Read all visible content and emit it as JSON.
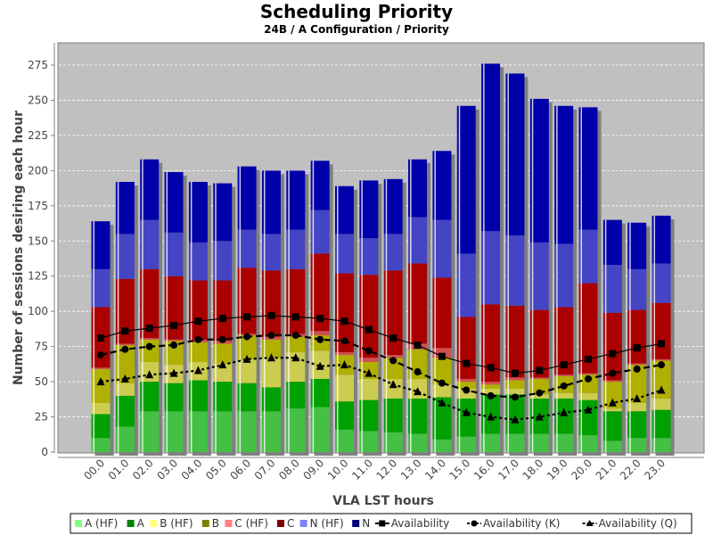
{
  "chart_data": {
    "type": "bar",
    "stacked": true,
    "title": "Scheduling Priority",
    "subtitle": "24B / A Configuration /  Priority",
    "xlabel": "VLA LST hours",
    "ylabel": "Number of sessions desiring each hour",
    "ylim": [
      0,
      290
    ],
    "yticks": [
      0,
      25,
      50,
      75,
      100,
      125,
      150,
      175,
      200,
      225,
      250,
      275
    ],
    "grid": true,
    "legend_position": "bottom",
    "categories": [
      "00.0",
      "01.0",
      "02.0",
      "03.0",
      "04.0",
      "05.0",
      "06.0",
      "07.0",
      "08.0",
      "09.0",
      "10.0",
      "11.0",
      "12.0",
      "13.0",
      "14.0",
      "15.0",
      "16.0",
      "17.0",
      "18.0",
      "19.0",
      "20.0",
      "21.0",
      "22.0",
      "23.0"
    ],
    "series": [
      {
        "name": "A (HF)",
        "color": "#44c044",
        "legend_color": "#80ff80",
        "values": [
          10,
          18,
          29,
          29,
          29,
          29,
          29,
          29,
          31,
          32,
          16,
          15,
          14,
          13,
          9,
          11,
          13,
          13,
          13,
          13,
          12,
          8,
          10,
          10
        ]
      },
      {
        "name": "A",
        "color": "#00a000",
        "legend_color": "#008000",
        "values": [
          17,
          22,
          21,
          20,
          22,
          21,
          20,
          17,
          19,
          20,
          20,
          22,
          24,
          25,
          30,
          27,
          28,
          28,
          25,
          25,
          25,
          21,
          19,
          20
        ]
      },
      {
        "name": "B (HF)",
        "color": "#cccc50",
        "legend_color": "#ffff80",
        "values": [
          8,
          9,
          14,
          13,
          13,
          13,
          17,
          21,
          21,
          20,
          19,
          15,
          14,
          14,
          9,
          7,
          4,
          4,
          3,
          4,
          5,
          2,
          6,
          8
        ]
      },
      {
        "name": "B",
        "color": "#b0b000",
        "legend_color": "#808000",
        "values": [
          24,
          27,
          16,
          17,
          14,
          14,
          17,
          13,
          11,
          11,
          14,
          12,
          15,
          21,
          19,
          5,
          3,
          6,
          11,
          12,
          13,
          19,
          27,
          27
        ]
      },
      {
        "name": "C (HF)",
        "color": "#d05050",
        "legend_color": "#ff8080",
        "values": [
          1,
          1,
          1,
          1,
          2,
          2,
          1,
          2,
          2,
          3,
          2,
          3,
          2,
          4,
          7,
          2,
          2,
          2,
          1,
          1,
          1,
          1,
          1,
          1
        ]
      },
      {
        "name": "C",
        "color": "#aa0000",
        "legend_color": "#800000",
        "values": [
          43,
          46,
          49,
          45,
          42,
          43,
          47,
          47,
          46,
          55,
          56,
          59,
          60,
          57,
          50,
          44,
          55,
          51,
          48,
          48,
          64,
          48,
          38,
          40
        ]
      },
      {
        "name": "N (HF)",
        "color": "#4444c4",
        "legend_color": "#8080ff",
        "values": [
          27,
          32,
          35,
          31,
          27,
          28,
          27,
          26,
          28,
          31,
          28,
          26,
          26,
          33,
          41,
          45,
          52,
          50,
          48,
          45,
          38,
          34,
          29,
          28
        ]
      },
      {
        "name": "N",
        "color": "#0000aa",
        "legend_color": "#000080",
        "values": [
          34,
          37,
          43,
          43,
          43,
          41,
          45,
          45,
          42,
          35,
          34,
          41,
          39,
          41,
          49,
          105,
          119,
          115,
          102,
          98,
          87,
          32,
          33,
          34
        ]
      }
    ],
    "lines": [
      {
        "name": "Availability",
        "marker": "square",
        "dash": "solid",
        "values": [
          81,
          86,
          88,
          90,
          93,
          95,
          96,
          97,
          96,
          95,
          93,
          87,
          81,
          76,
          68,
          63,
          60,
          56,
          58,
          62,
          66,
          70,
          74,
          77
        ]
      },
      {
        "name": "Availability (K)",
        "marker": "circle",
        "dash": "dashed",
        "values": [
          69,
          73,
          75,
          76,
          80,
          80,
          82,
          83,
          83,
          80,
          79,
          72,
          65,
          57,
          49,
          44,
          40,
          39,
          42,
          47,
          52,
          56,
          59,
          62
        ]
      },
      {
        "name": "Availability (Q)",
        "marker": "triangle",
        "dash": "dotted",
        "values": [
          50,
          52,
          55,
          56,
          58,
          62,
          66,
          67,
          67,
          61,
          62,
          56,
          48,
          43,
          35,
          28,
          25,
          23,
          25,
          28,
          30,
          35,
          38,
          44
        ]
      }
    ],
    "plot_background": "#c0c0c0"
  }
}
